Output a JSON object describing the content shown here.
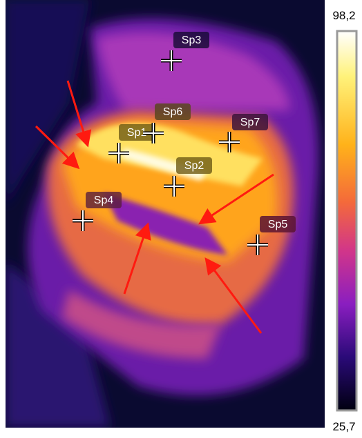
{
  "scale": {
    "max_label": "98,2",
    "min_label": "25,7"
  },
  "spots": [
    {
      "label": "Sp1"
    },
    {
      "label": "Sp2"
    },
    {
      "label": "Sp3"
    },
    {
      "label": "Sp4"
    },
    {
      "label": "Sp5"
    },
    {
      "label": "Sp6"
    },
    {
      "label": "Sp7"
    }
  ]
}
